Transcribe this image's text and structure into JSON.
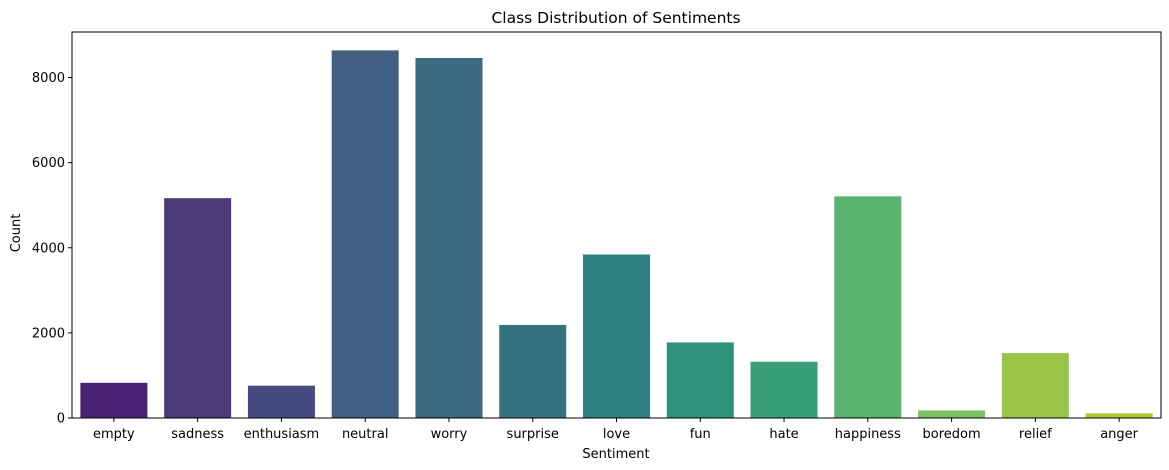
{
  "chart_data": {
    "type": "bar",
    "title": "Class Distribution of Sentiments",
    "xlabel": "Sentiment",
    "ylabel": "Count",
    "categories": [
      "empty",
      "sadness",
      "enthusiasm",
      "neutral",
      "worry",
      "surprise",
      "love",
      "fun",
      "hate",
      "happiness",
      "boredom",
      "relief",
      "anger"
    ],
    "values": [
      827,
      5165,
      759,
      8638,
      8459,
      2187,
      3842,
      1776,
      1323,
      5209,
      179,
      1526,
      110
    ],
    "colors": [
      "#482173",
      "#4a3a77",
      "#454a7f",
      "#415f83",
      "#396a80",
      "#347480",
      "#2e8380",
      "#2e927c",
      "#38a076",
      "#5ab36f",
      "#7ec064",
      "#9bc54a",
      "#b1ca34"
    ],
    "ylim": [
      0,
      9070
    ],
    "yticks": [
      0,
      2000,
      4000,
      6000,
      8000
    ],
    "grid": false,
    "legend": "none"
  }
}
